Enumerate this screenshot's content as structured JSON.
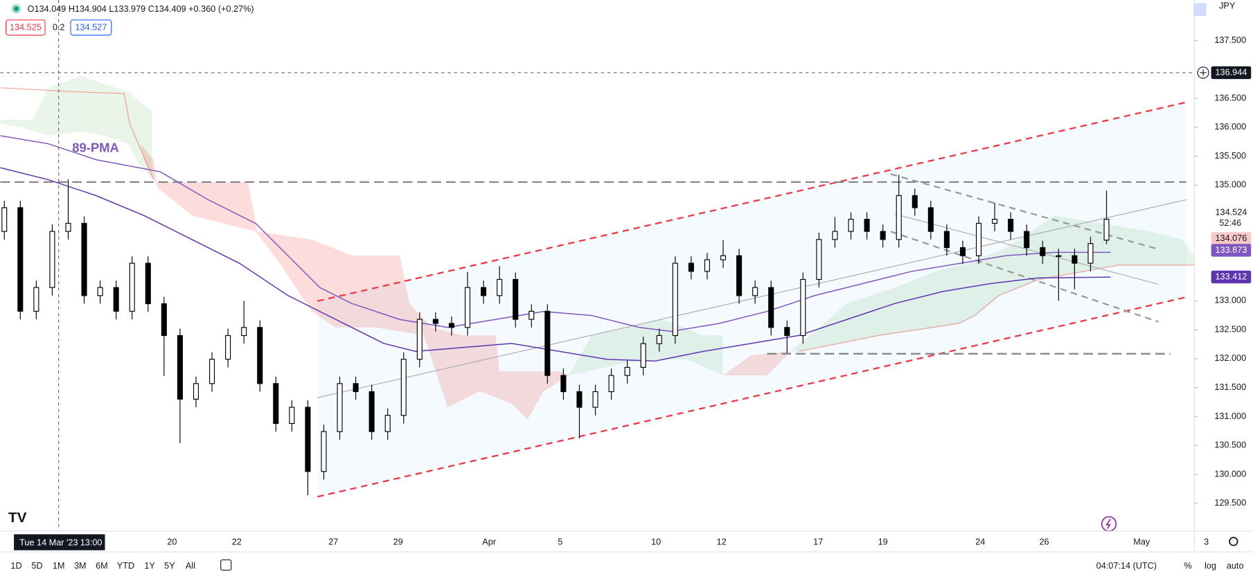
{
  "chart_data": {
    "type": "candlestick",
    "annotation": "89-PMA",
    "header": {
      "ohlc": "O134.049 H134.904 L133.979 C134.409 +0.360 (+0.27%)",
      "bid": "134.525",
      "spread": "0.2",
      "ask": "134.527"
    },
    "currency": "JPY",
    "crosshair_label": "Tue 14 Mar '23",
    "crosshair_time": "13:00",
    "countdown": "52:46",
    "up_color": "#ffffff",
    "down_color": "#000000",
    "ylim": [
      129.02,
      138.2
    ],
    "yticks": [
      {
        "value": 129.5,
        "label": "129.500"
      },
      {
        "value": 130,
        "label": "130.000"
      },
      {
        "value": 130.5,
        "label": "130.500"
      },
      {
        "value": 131,
        "label": "131.000"
      },
      {
        "value": 131.5,
        "label": "131.500"
      },
      {
        "value": 132,
        "label": "132.000"
      },
      {
        "value": 132.5,
        "label": "132.500"
      },
      {
        "value": 133,
        "label": "133.000"
      },
      {
        "value": 135,
        "label": "135.000"
      },
      {
        "value": 135.5,
        "label": "135.500"
      },
      {
        "value": 136,
        "label": "136.000"
      },
      {
        "value": 136.5,
        "label": "136.500"
      },
      {
        "value": 137.5,
        "label": "137.500"
      }
    ],
    "grid": false,
    "xtick_labels": [
      "20",
      "22",
      "27",
      "29",
      "Apr",
      "5",
      "10",
      "12",
      "17",
      "19",
      "24",
      "26",
      "May",
      "3"
    ],
    "open": [
      134.2,
      134.61,
      132.82,
      133.23,
      134.2,
      134.34,
      133.09,
      133.23,
      132.82,
      133.65,
      132.95,
      132.4,
      131.3,
      131.57,
      131.99,
      132.4,
      132.54,
      131.57,
      130.88,
      131.16,
      130.05,
      130.74,
      131.57,
      131.43,
      130.74,
      131.02,
      131.99,
      132.68,
      132.61,
      132.54,
      133.23,
      133.09,
      133.37,
      132.68,
      132.82,
      131.71,
      131.43,
      131.16,
      131.43,
      131.71,
      131.85,
      132.26,
      132.4,
      133.65,
      133.51,
      133.71,
      133.78,
      133.09,
      133.23,
      132.54,
      132.4,
      133.37,
      134.06,
      134.2,
      134.41,
      134.2,
      134.06,
      134.82,
      134.61,
      134.2,
      133.92,
      133.78,
      134.34,
      134.41,
      134.2,
      133.92,
      133.78,
      133.78,
      133.65,
      134.049
    ],
    "high": [
      134.73,
      134.73,
      133.35,
      134.32,
      135.1,
      134.46,
      133.35,
      133.35,
      133.77,
      133.77,
      133.07,
      132.52,
      131.69,
      132.11,
      132.52,
      133.0,
      132.66,
      131.69,
      131.28,
      131.28,
      130.86,
      131.69,
      131.69,
      131.55,
      131.14,
      132.11,
      132.8,
      132.8,
      132.73,
      133.5,
      133.35,
      133.6,
      133.49,
      132.94,
      132.94,
      131.83,
      131.55,
      131.55,
      131.83,
      131.97,
      132.38,
      132.52,
      133.77,
      133.77,
      133.83,
      134.05,
      133.9,
      133.35,
      133.35,
      132.66,
      133.49,
      134.18,
      134.45,
      134.53,
      134.53,
      134.32,
      135.18,
      134.94,
      134.73,
      134.32,
      134.04,
      134.46,
      134.7,
      134.53,
      134.32,
      134.04,
      133.9,
      133.9,
      134.11,
      134.904
    ],
    "low": [
      134.06,
      132.68,
      132.68,
      133.09,
      134.06,
      132.95,
      132.95,
      132.68,
      132.68,
      132.81,
      131.7,
      130.54,
      131.16,
      131.43,
      131.85,
      132.26,
      131.43,
      130.74,
      130.74,
      129.64,
      129.91,
      130.6,
      131.29,
      130.6,
      130.6,
      130.88,
      131.85,
      132.47,
      132.4,
      132.4,
      132.95,
      132.95,
      132.54,
      132.54,
      131.57,
      131.29,
      130.62,
      131.02,
      131.29,
      131.57,
      131.71,
      132.12,
      132.26,
      133.37,
      133.37,
      133.57,
      132.95,
      132.95,
      132.4,
      132.1,
      132.26,
      133.23,
      133.92,
      134.06,
      134.06,
      133.92,
      133.92,
      134.47,
      134.06,
      133.78,
      133.64,
      133.64,
      134.2,
      134.06,
      133.78,
      133.64,
      133.0,
      133.2,
      133.51,
      133.979
    ],
    "close": [
      134.61,
      132.82,
      133.23,
      134.2,
      134.34,
      133.09,
      133.23,
      132.82,
      133.65,
      132.95,
      132.4,
      131.3,
      131.57,
      131.99,
      132.4,
      132.54,
      131.57,
      130.88,
      131.16,
      130.05,
      130.74,
      131.57,
      131.43,
      130.74,
      131.02,
      131.99,
      132.68,
      132.61,
      132.54,
      133.23,
      133.09,
      133.37,
      132.68,
      132.82,
      131.71,
      131.43,
      131.16,
      131.43,
      131.71,
      131.85,
      132.26,
      132.4,
      133.65,
      133.51,
      133.71,
      133.78,
      133.09,
      133.23,
      132.54,
      132.4,
      133.37,
      134.06,
      134.2,
      134.41,
      134.2,
      134.06,
      134.82,
      134.61,
      134.2,
      133.92,
      133.78,
      134.34,
      134.41,
      134.2,
      133.92,
      133.78,
      133.78,
      133.65,
      133.99,
      134.409
    ],
    "price_markers": [
      {
        "value": 136.944,
        "color": "#131722",
        "text_color": "#ffffff"
      },
      {
        "value": 134.524,
        "color": "#ffffff",
        "text_color": "#131722"
      },
      {
        "value": 134.076,
        "color": "#f8c8c8",
        "text_color": "#131722"
      },
      {
        "value": 133.873,
        "color": "#7e57c2",
        "text_color": "#ffffff"
      },
      {
        "value": 133.412,
        "color": "#5e35b1",
        "text_color": "#ffffff"
      }
    ]
  },
  "ui": {
    "ranges": [
      "1D",
      "5D",
      "1M",
      "3M",
      "6M",
      "YTD",
      "1Y",
      "5Y",
      "All"
    ],
    "clock": "04:07:14 (UTC)",
    "options": [
      "%",
      "log",
      "auto"
    ]
  }
}
